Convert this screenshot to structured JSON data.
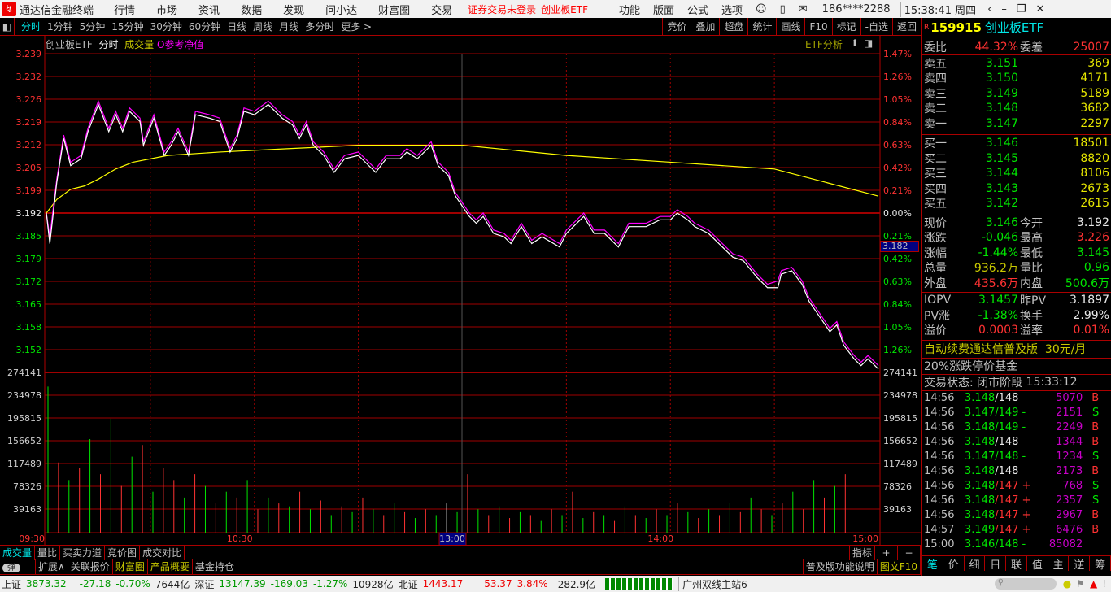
{
  "menubar": {
    "app_title": "通达信金融终端",
    "items": [
      "行情",
      "市场",
      "资讯",
      "数据",
      "发现",
      "问小达",
      "财富圈",
      "交易"
    ],
    "notice": "证券交易未登录",
    "notice_stock": "创业板ETF",
    "right_items": [
      "功能",
      "版面",
      "公式",
      "选项"
    ],
    "user": "186****2288",
    "clock": "15:38:41 周四"
  },
  "toolbar": {
    "periods": [
      "分时",
      "1分钟",
      "5分钟",
      "15分钟",
      "30分钟",
      "60分钟",
      "日线",
      "周线",
      "月线",
      "多分时",
      "更多 >"
    ],
    "right_buttons": [
      "竞价",
      "叠加",
      "超盘",
      "统计",
      "画线",
      "F10",
      "标记",
      "-自选",
      "返回"
    ]
  },
  "chart_header": {
    "name": "创业板ETF",
    "mode": "分时",
    "volume": "成交量",
    "nav": "O参考净值",
    "etf_analysis": "ETF分析",
    "crosshair_value": "3.182"
  },
  "chart_data": {
    "type": "line",
    "pre_close": 3.192,
    "ylim": [
      3.145,
      3.239
    ],
    "price_ticks": [
      "3.239",
      "3.232",
      "3.226",
      "3.219",
      "3.212",
      "3.205",
      "3.199",
      "3.192",
      "3.185",
      "3.179",
      "3.172",
      "3.165",
      "3.158",
      "3.152"
    ],
    "pct_ticks": [
      "1.47%",
      "1.26%",
      "1.05%",
      "0.84%",
      "0.63%",
      "0.42%",
      "0.21%",
      "0.00%",
      "0.21%",
      "0.42%",
      "0.63%",
      "0.84%",
      "1.05%",
      "1.26%"
    ],
    "volume_ticks": [
      "274141",
      "234978",
      "195815",
      "156652",
      "117489",
      "78326",
      "39163"
    ],
    "volume_max": 274141,
    "time_labels": [
      "09:30",
      "10:30",
      "13:00",
      "14:00",
      "15:00"
    ],
    "colors": {
      "price": "#ffffff",
      "nav": "#ff00ff",
      "average": "#ffff00",
      "up": "#ff3232",
      "down": "#00e600"
    },
    "series": {
      "price": [
        [
          "09:30",
          3.192
        ],
        [
          "09:31",
          3.183
        ],
        [
          "09:33",
          3.201
        ],
        [
          "09:35",
          3.214
        ],
        [
          "09:37",
          3.206
        ],
        [
          "09:40",
          3.208
        ],
        [
          "09:42",
          3.216
        ],
        [
          "09:45",
          3.224
        ],
        [
          "09:48",
          3.216
        ],
        [
          "09:50",
          3.221
        ],
        [
          "09:52",
          3.216
        ],
        [
          "09:54",
          3.222
        ],
        [
          "09:57",
          3.219
        ],
        [
          "09:58",
          3.212
        ],
        [
          "10:01",
          3.22
        ],
        [
          "10:04",
          3.209
        ],
        [
          "10:06",
          3.212
        ],
        [
          "10:08",
          3.216
        ],
        [
          "10:11",
          3.209
        ],
        [
          "10:13",
          3.221
        ],
        [
          "10:17",
          3.22
        ],
        [
          "10:20",
          3.219
        ],
        [
          "10:23",
          3.21
        ],
        [
          "10:25",
          3.214
        ],
        [
          "10:27",
          3.222
        ],
        [
          "10:30",
          3.221
        ],
        [
          "10:34",
          3.224
        ],
        [
          "10:38",
          3.22
        ],
        [
          "10:41",
          3.218
        ],
        [
          "10:43",
          3.214
        ],
        [
          "10:45",
          3.218
        ],
        [
          "10:47",
          3.212
        ],
        [
          "10:50",
          3.209
        ],
        [
          "10:53",
          3.204
        ],
        [
          "10:56",
          3.208
        ],
        [
          "11:00",
          3.209
        ],
        [
          "11:03",
          3.206
        ],
        [
          "11:05",
          3.204
        ],
        [
          "11:08",
          3.208
        ],
        [
          "11:12",
          3.208
        ],
        [
          "11:14",
          3.21
        ],
        [
          "11:17",
          3.208
        ],
        [
          "11:21",
          3.212
        ],
        [
          "11:23",
          3.206
        ],
        [
          "11:26",
          3.203
        ],
        [
          "11:28",
          3.197
        ],
        [
          "11:30",
          3.194
        ],
        [
          "13:02",
          3.191
        ],
        [
          "13:04",
          3.189
        ],
        [
          "13:06",
          3.191
        ],
        [
          "13:09",
          3.186
        ],
        [
          "13:12",
          3.185
        ],
        [
          "13:14",
          3.183
        ],
        [
          "13:17",
          3.188
        ],
        [
          "13:20",
          3.183
        ],
        [
          "13:23",
          3.185
        ],
        [
          "13:28",
          3.182
        ],
        [
          "13:30",
          3.186
        ],
        [
          "13:35",
          3.191
        ],
        [
          "13:38",
          3.186
        ],
        [
          "13:41",
          3.186
        ],
        [
          "13:45",
          3.182
        ],
        [
          "13:48",
          3.188
        ],
        [
          "13:53",
          3.188
        ],
        [
          "13:57",
          3.19
        ],
        [
          "14:00",
          3.19
        ],
        [
          "14:02",
          3.192
        ],
        [
          "14:05",
          3.19
        ],
        [
          "14:07",
          3.188
        ],
        [
          "14:11",
          3.186
        ],
        [
          "14:14",
          3.183
        ],
        [
          "14:18",
          3.179
        ],
        [
          "14:21",
          3.178
        ],
        [
          "14:25",
          3.173
        ],
        [
          "14:28",
          3.17
        ],
        [
          "14:31",
          3.17
        ],
        [
          "14:32",
          3.174
        ],
        [
          "14:35",
          3.175
        ],
        [
          "14:38",
          3.171
        ],
        [
          "14:40",
          3.166
        ],
        [
          "14:42",
          3.163
        ],
        [
          "14:46",
          3.157
        ],
        [
          "14:48",
          3.159
        ],
        [
          "14:50",
          3.153
        ],
        [
          "14:53",
          3.149
        ],
        [
          "14:55",
          3.147
        ],
        [
          "14:57",
          3.149
        ],
        [
          "15:00",
          3.146
        ]
      ],
      "nav": [
        [
          "09:30",
          3.192
        ],
        [
          "09:31",
          3.185
        ],
        [
          "09:33",
          3.202
        ],
        [
          "09:35",
          3.215
        ],
        [
          "09:37",
          3.207
        ],
        [
          "09:40",
          3.209
        ],
        [
          "09:42",
          3.217
        ],
        [
          "09:45",
          3.225
        ],
        [
          "09:48",
          3.217
        ],
        [
          "09:50",
          3.222
        ],
        [
          "09:52",
          3.217
        ],
        [
          "09:54",
          3.223
        ],
        [
          "09:57",
          3.22
        ],
        [
          "09:58",
          3.213
        ],
        [
          "10:01",
          3.221
        ],
        [
          "10:04",
          3.21
        ],
        [
          "10:06",
          3.213
        ],
        [
          "10:08",
          3.217
        ],
        [
          "10:11",
          3.21
        ],
        [
          "10:13",
          3.222
        ],
        [
          "10:17",
          3.221
        ],
        [
          "10:20",
          3.22
        ],
        [
          "10:23",
          3.211
        ],
        [
          "10:25",
          3.215
        ],
        [
          "10:27",
          3.223
        ],
        [
          "10:30",
          3.222
        ],
        [
          "10:34",
          3.225
        ],
        [
          "10:38",
          3.221
        ],
        [
          "10:41",
          3.219
        ],
        [
          "10:43",
          3.215
        ],
        [
          "10:45",
          3.219
        ],
        [
          "10:47",
          3.213
        ],
        [
          "10:50",
          3.21
        ],
        [
          "10:53",
          3.205
        ],
        [
          "10:56",
          3.209
        ],
        [
          "11:00",
          3.21
        ],
        [
          "11:03",
          3.207
        ],
        [
          "11:05",
          3.205
        ],
        [
          "11:08",
          3.209
        ],
        [
          "11:12",
          3.209
        ],
        [
          "11:14",
          3.211
        ],
        [
          "11:17",
          3.209
        ],
        [
          "11:21",
          3.213
        ],
        [
          "11:23",
          3.207
        ],
        [
          "11:26",
          3.204
        ],
        [
          "11:28",
          3.198
        ],
        [
          "11:30",
          3.195
        ],
        [
          "13:02",
          3.192
        ],
        [
          "13:04",
          3.19
        ],
        [
          "13:06",
          3.192
        ],
        [
          "13:09",
          3.187
        ],
        [
          "13:12",
          3.186
        ],
        [
          "13:14",
          3.184
        ],
        [
          "13:17",
          3.189
        ],
        [
          "13:20",
          3.184
        ],
        [
          "13:23",
          3.186
        ],
        [
          "13:28",
          3.183
        ],
        [
          "13:30",
          3.187
        ],
        [
          "13:35",
          3.192
        ],
        [
          "13:38",
          3.187
        ],
        [
          "13:41",
          3.187
        ],
        [
          "13:45",
          3.183
        ],
        [
          "13:48",
          3.189
        ],
        [
          "13:53",
          3.189
        ],
        [
          "13:57",
          3.191
        ],
        [
          "14:00",
          3.191
        ],
        [
          "14:02",
          3.193
        ],
        [
          "14:05",
          3.191
        ],
        [
          "14:07",
          3.189
        ],
        [
          "14:11",
          3.187
        ],
        [
          "14:14",
          3.184
        ],
        [
          "14:18",
          3.18
        ],
        [
          "14:21",
          3.179
        ],
        [
          "14:25",
          3.174
        ],
        [
          "14:28",
          3.171
        ],
        [
          "14:31",
          3.172
        ],
        [
          "14:32",
          3.175
        ],
        [
          "14:35",
          3.176
        ],
        [
          "14:38",
          3.172
        ],
        [
          "14:40",
          3.167
        ],
        [
          "14:42",
          3.164
        ],
        [
          "14:46",
          3.158
        ],
        [
          "14:48",
          3.16
        ],
        [
          "14:50",
          3.154
        ],
        [
          "14:53",
          3.15
        ],
        [
          "14:55",
          3.148
        ],
        [
          "14:57",
          3.15
        ],
        [
          "15:00",
          3.147
        ]
      ],
      "average": [
        [
          "09:30",
          3.192
        ],
        [
          "09:33",
          3.196
        ],
        [
          "09:37",
          3.199
        ],
        [
          "09:41",
          3.2
        ],
        [
          "09:45",
          3.202
        ],
        [
          "09:50",
          3.205
        ],
        [
          "09:55",
          3.207
        ],
        [
          "10:05",
          3.209
        ],
        [
          "10:20",
          3.21
        ],
        [
          "10:40",
          3.211
        ],
        [
          "11:00",
          3.212
        ],
        [
          "11:30",
          3.212
        ],
        [
          "13:30",
          3.209
        ],
        [
          "14:00",
          3.207
        ],
        [
          "14:30",
          3.205
        ],
        [
          "14:45",
          3.201
        ],
        [
          "15:00",
          3.197
        ]
      ]
    },
    "volume": {
      "values": [
        250000,
        120000,
        90000,
        110000,
        160000,
        100000,
        195000,
        80000,
        130000,
        150000,
        70000,
        110000,
        90000,
        60000,
        100000,
        80000,
        50000,
        70000,
        60000,
        90000,
        40000,
        60000,
        50000,
        45000,
        70000,
        40000,
        55000,
        30000,
        45000,
        35000,
        60000,
        40000,
        30000,
        50000,
        35000,
        25000,
        40000,
        30000,
        50000,
        35000,
        100000,
        40000,
        30000,
        45000,
        25000,
        35000,
        30000,
        20000,
        40000,
        30000,
        70000,
        25000,
        35000,
        30000,
        20000,
        45000,
        30000,
        25000,
        40000,
        30000,
        50000,
        35000,
        25000,
        40000,
        30000,
        50000,
        35000,
        60000,
        40000,
        30000,
        50000,
        70000,
        40000,
        90000,
        60000,
        80000,
        100000,
        150000,
        90000,
        120000
      ],
      "direction": "grgrgrgrgrgrrgrgrgrgrgrgrgrgrgrgrgrgrgwgrgrgrgrgrgrgrgrgrgrgrgrgrgrgrgrgrgrgr"
    }
  },
  "bottom_tabs": [
    "成交量",
    "量比",
    "买卖力道",
    "竞价图",
    "成交对比"
  ],
  "indicator": {
    "label": "指标",
    "plus": "+",
    "minus": "−"
  },
  "ext_tabs": {
    "toggle": "弹",
    "items": [
      "扩展∧",
      "关联报价",
      "财富圈",
      "产品概要",
      "基金持仓"
    ],
    "help": "普及版功能说明",
    "f10": "图文F10"
  },
  "quote": {
    "flag": "R",
    "code": "159915",
    "name": "创业板ETF",
    "weibi_label": "委比",
    "weibi": "44.32%",
    "weicha_label": "委差",
    "weicha": "25007",
    "asks": [
      {
        "label": "卖五",
        "price": "3.151",
        "vol": "369"
      },
      {
        "label": "卖四",
        "price": "3.150",
        "vol": "4171"
      },
      {
        "label": "卖三",
        "price": "3.149",
        "vol": "5189"
      },
      {
        "label": "卖二",
        "price": "3.148",
        "vol": "3682"
      },
      {
        "label": "卖一",
        "price": "3.147",
        "vol": "2297"
      }
    ],
    "bids": [
      {
        "label": "买一",
        "price": "3.146",
        "vol": "18501"
      },
      {
        "label": "买二",
        "price": "3.145",
        "vol": "8820"
      },
      {
        "label": "买三",
        "price": "3.144",
        "vol": "8106"
      },
      {
        "label": "买四",
        "price": "3.143",
        "vol": "2673"
      },
      {
        "label": "买五",
        "price": "3.142",
        "vol": "2615"
      }
    ],
    "stats": [
      {
        "l1": "现价",
        "v1": "3.146",
        "c1": "g",
        "l2": "今开",
        "v2": "3.192",
        "c2": "w"
      },
      {
        "l1": "涨跌",
        "v1": "-0.046",
        "c1": "g",
        "l2": "最高",
        "v2": "3.226",
        "c2": "r"
      },
      {
        "l1": "涨幅",
        "v1": "-1.44%",
        "c1": "g",
        "l2": "最低",
        "v2": "3.145",
        "c2": "g"
      },
      {
        "l1": "总量",
        "v1": "936.2万",
        "c1": "y",
        "l2": "量比",
        "v2": "0.96",
        "c2": "g"
      },
      {
        "l1": "外盘",
        "v1": "435.6万",
        "c1": "r",
        "l2": "内盘",
        "v2": "500.6万",
        "c2": "g"
      }
    ],
    "etf": [
      {
        "l1": "IOPV",
        "v1": "3.1457",
        "c1": "g",
        "l2": "昨PV",
        "v2": "3.1897",
        "c2": "w"
      },
      {
        "l1": "PV涨",
        "v1": "-1.38%",
        "c1": "g",
        "l2": "换手",
        "v2": "2.99%",
        "c2": "w"
      },
      {
        "l1": "溢价",
        "v1": "0.0003",
        "c1": "r",
        "l2": "溢率",
        "v2": "0.01%",
        "c2": "r"
      }
    ],
    "ad": "自动续费通达信普及版",
    "ad_price": "30元/月",
    "limit_note": "20%涨跌停价基金",
    "status_label": "交易状态: 闭市阶段",
    "status_time": "15:33:12",
    "ticks": [
      {
        "t": "14:56",
        "p": "3.148",
        "s": "/148",
        "sc": "w",
        "f": "",
        "v": "5070",
        "bs": "B"
      },
      {
        "t": "14:56",
        "p": "3.147",
        "s": "/149 -",
        "sc": "g",
        "f": "",
        "v": "2151",
        "bs": "S"
      },
      {
        "t": "14:56",
        "p": "3.148",
        "s": "/149 -",
        "sc": "g",
        "f": "",
        "v": "2249",
        "bs": "B"
      },
      {
        "t": "14:56",
        "p": "3.148",
        "s": "/148",
        "sc": "w",
        "f": "",
        "v": "1344",
        "bs": "B"
      },
      {
        "t": "14:56",
        "p": "3.147",
        "s": "/148 -",
        "sc": "g",
        "f": "",
        "v": "1234",
        "bs": "S"
      },
      {
        "t": "14:56",
        "p": "3.148",
        "s": "/148",
        "sc": "w",
        "f": "",
        "v": "2173",
        "bs": "B"
      },
      {
        "t": "14:56",
        "p": "3.148",
        "s": "/147 +",
        "sc": "r",
        "f": "",
        "v": "768",
        "bs": "S"
      },
      {
        "t": "14:56",
        "p": "3.148",
        "s": "/147 +",
        "sc": "r",
        "f": "",
        "v": "2357",
        "bs": "S"
      },
      {
        "t": "14:56",
        "p": "3.148",
        "s": "/147 +",
        "sc": "r",
        "f": "",
        "v": "2967",
        "bs": "B"
      },
      {
        "t": "14:57",
        "p": "3.149",
        "s": "/147 +",
        "sc": "r",
        "f": "",
        "v": "6476",
        "bs": "B"
      },
      {
        "t": "15:00",
        "p": "3.146",
        "s": "/148 -",
        "sc": "g",
        "f": "",
        "v": "85082",
        "bs": ""
      }
    ],
    "tabs": [
      "笔",
      "价",
      "细",
      "日",
      "联",
      "值",
      "主",
      "逆",
      "筹"
    ]
  },
  "statusbar": {
    "sh_label": "上证",
    "sh": "3873.32",
    "sh_chg": "-27.18",
    "sh_pct": "-0.70%",
    "sh_amt": "7644亿",
    "sz_label": "深证",
    "sz": "13147.39",
    "sz_chg": "-169.03",
    "sz_pct": "-1.27%",
    "sz_amt": "10928亿",
    "bj_label": "北证",
    "bj": "1443.17",
    "bj_chg": "53.37",
    "bj_pct": "3.84%",
    "bj_amt": "282.9亿",
    "server": "广州双线主站6"
  }
}
